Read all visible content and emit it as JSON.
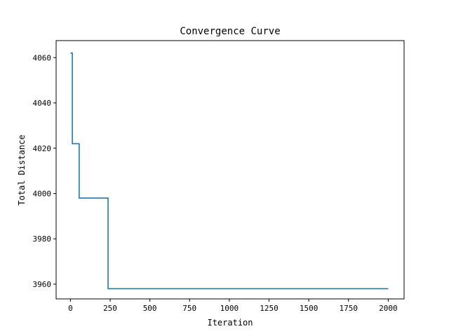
{
  "chart_data": {
    "type": "line",
    "title": "Convergence Curve",
    "xlabel": "Iteration",
    "ylabel": "Total Distance",
    "xlim": [
      -90,
      2100
    ],
    "ylim": [
      3953.5,
      4067.5
    ],
    "xticks": [
      0,
      250,
      500,
      750,
      1000,
      1250,
      1500,
      1750,
      2000
    ],
    "yticks": [
      3960,
      3980,
      4000,
      4020,
      4040,
      4060
    ],
    "grid": false,
    "legend": "none",
    "series": [
      {
        "color": "#1f77b4",
        "step": "post",
        "points": [
          {
            "x": 0,
            "y": 4062
          },
          {
            "x": 12,
            "y": 4022
          },
          {
            "x": 55,
            "y": 3998
          },
          {
            "x": 237,
            "y": 3958
          },
          {
            "x": 2000,
            "y": 3958
          }
        ]
      }
    ]
  }
}
